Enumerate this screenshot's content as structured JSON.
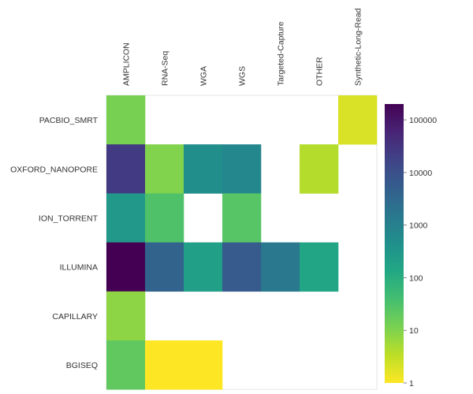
{
  "chart_data": {
    "type": "heatmap",
    "title": "",
    "xlabel": "",
    "ylabel": "",
    "x_categories": [
      "AMPLICON",
      "RNA-Seq",
      "WGA",
      "WGS",
      "Targeted-Capture",
      "OTHER",
      "Synthetic-Long-Read"
    ],
    "y_categories": [
      "PACBIO_SMRT",
      "OXFORD_NANOPORE",
      "ION_TORRENT",
      "ILLUMINA",
      "CAPILLARY",
      "BGISEQ"
    ],
    "values": [
      [
        12,
        null,
        null,
        null,
        null,
        null,
        2
      ],
      [
        25000,
        10,
        500,
        700,
        null,
        4,
        null
      ],
      [
        300,
        30,
        null,
        25,
        null,
        null,
        null
      ],
      [
        200000,
        4000,
        200,
        6000,
        1500,
        150,
        null
      ],
      [
        8,
        null,
        null,
        null,
        null,
        null,
        null
      ],
      [
        20,
        1,
        1,
        null,
        null,
        null,
        null
      ]
    ],
    "colorscale": "viridis_r",
    "log_scale": true,
    "colorbar": {
      "range": [
        1,
        200000
      ],
      "ticks": [
        1,
        10,
        100,
        1000,
        10000,
        100000
      ],
      "tick_labels": [
        "1",
        "10",
        "100",
        "1000",
        "10000",
        "100000"
      ]
    },
    "grid": false
  }
}
